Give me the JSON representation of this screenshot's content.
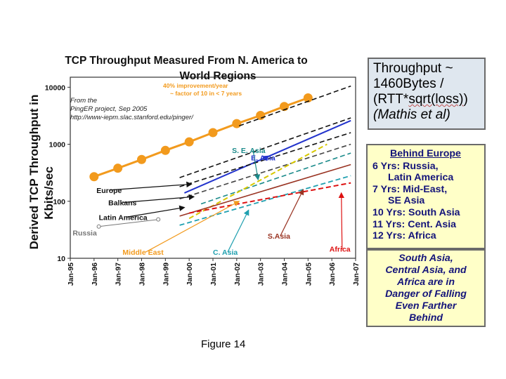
{
  "chart_data": {
    "type": "line",
    "title": "TCP Throughput Measured From N. America to World Regions",
    "title_lines": [
      "TCP Throughput Measured From N. America to",
      "World Regions"
    ],
    "ylabel_lines": [
      "Derived TCP Throughput in",
      "Kbits/sec"
    ],
    "yscale": "log",
    "ylim": [
      10,
      15000
    ],
    "xlim": [
      0,
      12
    ],
    "y_ticks": [
      {
        "value": 10,
        "label": "10"
      },
      {
        "value": 100,
        "label": "100"
      },
      {
        "value": 1000,
        "label": "1000"
      },
      {
        "value": 10000,
        "label": "10000"
      }
    ],
    "x_ticks": [
      "Jan-95",
      "Jan-96",
      "Jan-97",
      "Jan-98",
      "Jan-99",
      "Jan-00",
      "Jan-01",
      "Jan-02",
      "Jan-03",
      "Jan-04",
      "Jan-05",
      "Jan-06",
      "Jan-07"
    ],
    "source_note": [
      "From the",
      "PingER project, Sep 2005",
      "http://www-iepm.slac.stanford.edu/pinger/"
    ],
    "improvement_note": [
      "40% improvement/year",
      "~ factor of 10 in < 7 years"
    ],
    "series": [
      {
        "name": "40% improvement/year",
        "color": "#f29a1d",
        "style": "solid",
        "width": 3,
        "marker": "circle",
        "x": [
          1,
          2,
          3,
          4,
          5,
          6,
          7,
          8,
          9,
          10
        ],
        "values": [
          270,
          380,
          540,
          780,
          1100,
          1600,
          2300,
          3200,
          4600,
          6500
        ]
      },
      {
        "name": "E. Asia",
        "color": "#2233cc",
        "style": "solid",
        "width": 2,
        "x": [
          4.8,
          11.8
        ],
        "values": [
          140,
          2600
        ]
      },
      {
        "name": "Europe",
        "color": "#111111",
        "style": "dashed",
        "width": 1.6,
        "x": [
          4.6,
          11.8
        ],
        "values": [
          260,
          2900
        ]
      },
      {
        "name": "Balkans",
        "color": "#111111",
        "style": "dashed",
        "width": 1.6,
        "x": [
          4.6,
          11.8
        ],
        "values": [
          180,
          1600
        ]
      },
      {
        "name": "Latin America",
        "color": "#444444",
        "style": "dashed",
        "width": 1.6,
        "x": [
          4.6,
          11.8
        ],
        "values": [
          110,
          1000
        ]
      },
      {
        "name": "S. E. Asia",
        "color": "#1a8a8a",
        "style": "dashed",
        "width": 1.6,
        "x": [
          5.5,
          11.8
        ],
        "values": [
          90,
          700
        ]
      },
      {
        "name": "Russia",
        "color": "#777777",
        "style": "solid",
        "width": 1,
        "marker": "circle",
        "x": [
          1.2,
          3.7
        ],
        "values": [
          36,
          48
        ]
      },
      {
        "name": "Middle East",
        "color": "#d8c800",
        "style": "dashed",
        "width": 2,
        "x": [
          5,
          10.8
        ],
        "values": [
          50,
          1000
        ]
      },
      {
        "name": "C. Asia",
        "color": "#20a0b0",
        "style": "dashed",
        "width": 1.8,
        "x": [
          4.6,
          11.8
        ],
        "values": [
          38,
          280
        ]
      },
      {
        "name": "S.Asia",
        "color": "#993322",
        "style": "solid",
        "width": 1.6,
        "x": [
          4.6,
          11.8
        ],
        "values": [
          55,
          440
        ]
      },
      {
        "name": "Africa",
        "color": "#dd1111",
        "style": "dashed",
        "width": 2,
        "x": [
          5,
          11.8
        ],
        "values": [
          62,
          210
        ]
      }
    ],
    "region_labels": [
      {
        "text": "S. E. Asia",
        "color": "#1a8a8a",
        "anchor": [
          6.8,
          700
        ],
        "target": [
          7.9,
          240
        ]
      },
      {
        "text": "E. Asia",
        "color": "#2233cc",
        "anchor": [
          7.6,
          520
        ],
        "target": [
          8.1,
          610
        ]
      },
      {
        "text": "Europe",
        "color": "#111111",
        "anchor": [
          1.1,
          140
        ],
        "target": [
          5.1,
          200
        ]
      },
      {
        "text": "Balkans",
        "color": "#111111",
        "anchor": [
          1.6,
          85
        ],
        "target": [
          5.2,
          120
        ]
      },
      {
        "text": "Latin America",
        "color": "#111111",
        "anchor": [
          1.2,
          47
        ],
        "target": [
          4.8,
          78
        ]
      },
      {
        "text": "Russia",
        "color": "#777777",
        "anchor": [
          0.1,
          25
        ],
        "target": null
      },
      {
        "text": "Middle East",
        "color": "#f29a1d",
        "anchor": [
          2.2,
          11.5
        ],
        "target": [
          7.1,
          100
        ]
      },
      {
        "text": "C. Asia",
        "color": "#20a0b0",
        "anchor": [
          6,
          11.5
        ],
        "target": [
          7.5,
          70
        ]
      },
      {
        "text": "S.Asia",
        "color": "#993322",
        "anchor": [
          8.3,
          22
        ],
        "target": [
          9.8,
          160
        ]
      },
      {
        "text": "Africa",
        "color": "#dd1111",
        "anchor": [
          10.9,
          13
        ],
        "target": [
          11.4,
          140
        ]
      }
    ]
  },
  "formula_box": {
    "line1": "Throughput ~",
    "line2": "1460Bytes /",
    "line3_prefix": "(RTT*",
    "line3_squiggle": "sqrt(loss)",
    "line3_suffix": ")",
    "line4": "(Mathis et al)"
  },
  "behind_box": {
    "title": "Behind Europe",
    "rows": [
      "6 Yrs: Russia,",
      "Latin America",
      "7 Yrs: Mid-East,",
      "SE Asia",
      "10 Yrs: South Asia",
      "11 Yrs: Cent. Asia",
      "12 Yrs: Africa"
    ]
  },
  "danger_box": {
    "lines": [
      "South Asia,",
      "Central Asia, and",
      "Africa are in",
      "Danger of Falling",
      "Even Farther",
      "Behind"
    ]
  },
  "figure_caption": "Figure 14"
}
